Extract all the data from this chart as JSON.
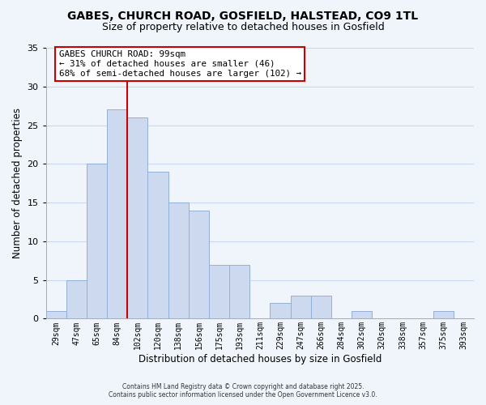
{
  "title": "GABES, CHURCH ROAD, GOSFIELD, HALSTEAD, CO9 1TL",
  "subtitle": "Size of property relative to detached houses in Gosfield",
  "xlabel": "Distribution of detached houses by size in Gosfield",
  "ylabel": "Number of detached properties",
  "bar_labels": [
    "29sqm",
    "47sqm",
    "65sqm",
    "84sqm",
    "102sqm",
    "120sqm",
    "138sqm",
    "156sqm",
    "175sqm",
    "193sqm",
    "211sqm",
    "229sqm",
    "247sqm",
    "266sqm",
    "284sqm",
    "302sqm",
    "320sqm",
    "338sqm",
    "357sqm",
    "375sqm",
    "393sqm"
  ],
  "bar_values": [
    1,
    5,
    20,
    27,
    26,
    19,
    15,
    14,
    7,
    7,
    0,
    2,
    3,
    3,
    0,
    1,
    0,
    0,
    0,
    1,
    0
  ],
  "bar_color": "#ccd9ee",
  "bar_edge_color": "#93b0d8",
  "vline_color": "#cc0000",
  "ylim": [
    0,
    35
  ],
  "yticks": [
    0,
    5,
    10,
    15,
    20,
    25,
    30,
    35
  ],
  "annotation_title": "GABES CHURCH ROAD: 99sqm",
  "annotation_line1": "← 31% of detached houses are smaller (46)",
  "annotation_line2": "68% of semi-detached houses are larger (102) →",
  "annotation_box_facecolor": "#ffffff",
  "annotation_box_edgecolor": "#cc0000",
  "footer1": "Contains HM Land Registry data © Crown copyright and database right 2025.",
  "footer2": "Contains public sector information licensed under the Open Government Licence v3.0.",
  "grid_color": "#c8d8ee",
  "background_color": "#f0f5fc",
  "title_fontsize": 10,
  "subtitle_fontsize": 9
}
